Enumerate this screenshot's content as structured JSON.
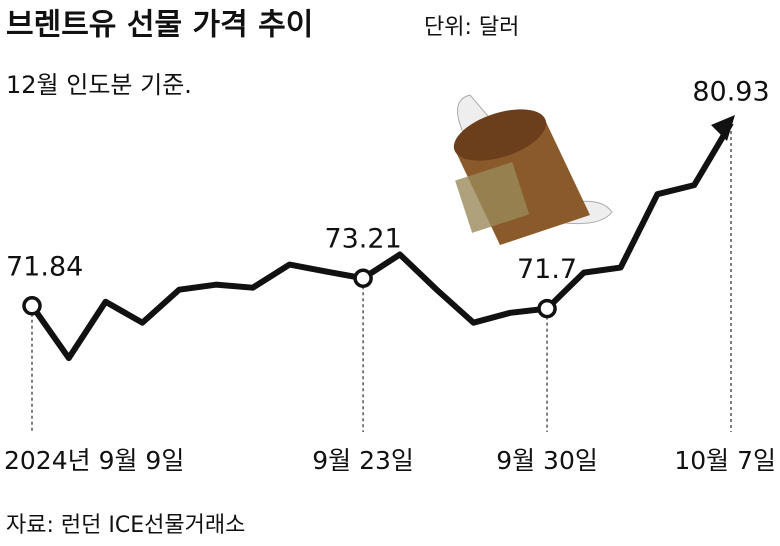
{
  "chart_data": {
    "type": "line",
    "title": "브렌트유 선물 가격 추이",
    "unit": "단위: 달러",
    "subtitle": "12월 인도분 기준.",
    "source": "자료: 런던 ICE선물거래소",
    "categories": [
      "2024년 9월 9일",
      null,
      null,
      null,
      null,
      null,
      null,
      null,
      null,
      "9월 23일",
      null,
      null,
      null,
      null,
      "9월 30일",
      null,
      null,
      null,
      null,
      "10월 7일"
    ],
    "series": [
      {
        "color": "#111111",
        "values": [
          71.84,
          69.24,
          72.04,
          71.0,
          72.64,
          72.89,
          72.74,
          73.89,
          73.54,
          73.21,
          74.39,
          72.64,
          71.0,
          71.49,
          71.7,
          73.49,
          73.74,
          77.39,
          77.84,
          80.93
        ]
      }
    ],
    "ylim": [
      68,
      82
    ]
  }
}
